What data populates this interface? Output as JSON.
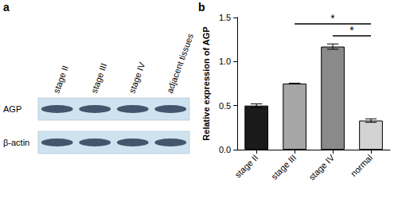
{
  "figure": {
    "panel_labels": [
      "a",
      "b"
    ],
    "blot": {
      "lanes": [
        "stage II",
        "stage III",
        "stage IV",
        "adjacent tissues"
      ],
      "rows": [
        "AGP",
        "β-actin"
      ]
    }
  },
  "chart_data": {
    "type": "bar",
    "y_label": "Relative expression of AGP",
    "categories": [
      "stage II",
      "stage III",
      "stage IV",
      "normal"
    ],
    "values": [
      0.5,
      0.75,
      1.17,
      0.33
    ],
    "errors": [
      0.02,
      0.005,
      0.03,
      0.02
    ],
    "colors": [
      "#1a1a1a",
      "#a6a6a6",
      "#8a8a8a",
      "#d3d3d3"
    ],
    "ylim": [
      0,
      1.5
    ],
    "yticks": [
      {
        "value": 0,
        "label": "0.0"
      },
      0.5,
      {
        "value": 1,
        "label": "1.0"
      },
      1.5
    ],
    "grid": false,
    "annotations": [
      {
        "text": "*",
        "from": "stage III",
        "to": "normal",
        "y": 1.43
      },
      {
        "text": "*",
        "from": "stage IV",
        "to": "normal",
        "y": 1.29
      }
    ]
  }
}
